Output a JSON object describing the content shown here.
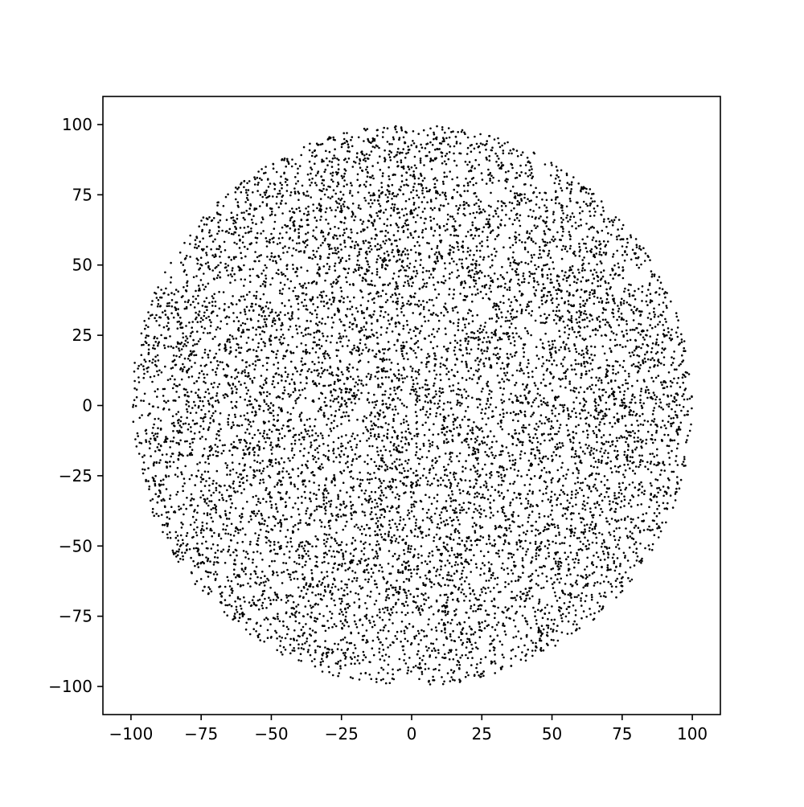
{
  "chart_data": {
    "type": "scatter",
    "title": "",
    "xlabel": "",
    "ylabel": "",
    "xlim": [
      -110,
      110
    ],
    "ylim": [
      -110,
      110
    ],
    "x_ticks": [
      -100,
      -75,
      -50,
      -25,
      0,
      25,
      50,
      75,
      100
    ],
    "y_ticks": [
      -100,
      -75,
      -50,
      -25,
      0,
      25,
      50,
      75,
      100
    ],
    "x_tick_labels": [
      "−100",
      "−75",
      "−50",
      "−25",
      "0",
      "25",
      "50",
      "75",
      "100"
    ],
    "y_tick_labels": [
      "−100",
      "−75",
      "−50",
      "−25",
      "0",
      "25",
      "50",
      "75",
      "100"
    ],
    "grid": false,
    "legend": "none",
    "marker_color": "#000000",
    "series": [
      {
        "distribution": "uniform random points filling a disk",
        "center": [
          0,
          0
        ],
        "radius": 100,
        "approx_point_count": 10000
      }
    ]
  }
}
